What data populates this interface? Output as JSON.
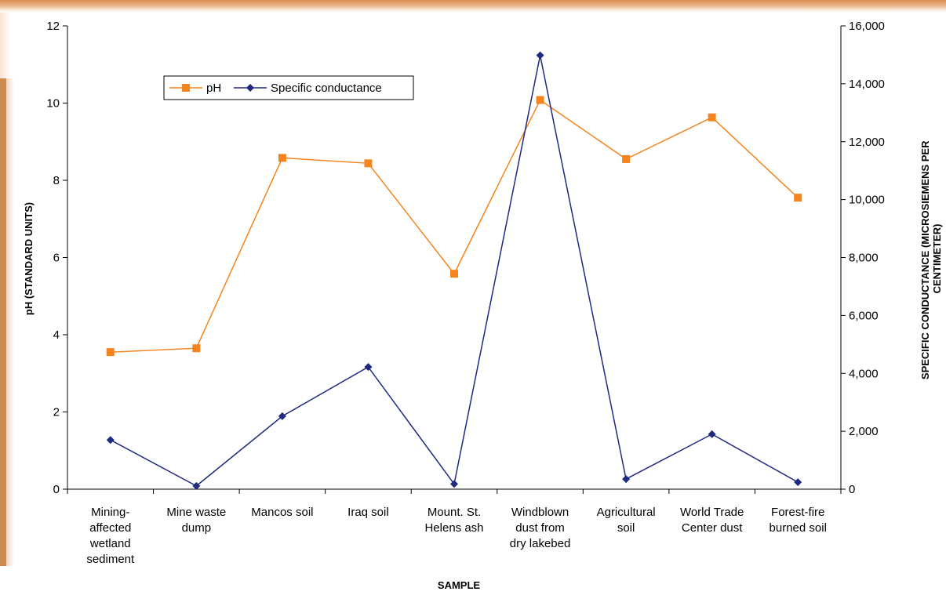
{
  "chart_data": {
    "type": "line",
    "title": "",
    "xlabel": "SAMPLE",
    "ylabel": "pH (STANDARD UNITS)",
    "y2label": [
      "SPECIFIC CONDUCTANCE (MICROSIEMENS PER",
      "CENTIMETER)"
    ],
    "categories": [
      [
        "Mining-",
        "affected",
        "wetland",
        "sediment"
      ],
      [
        "Mine waste",
        "dump"
      ],
      [
        "Mancos soil"
      ],
      [
        "Iraq soil"
      ],
      [
        "Mount. St.",
        "Helens ash"
      ],
      [
        "Windblown",
        "dust from",
        "dry lakebed"
      ],
      [
        "Agricultural",
        "soil"
      ],
      [
        "World Trade",
        "Center dust"
      ],
      [
        "Forest-fire",
        "burned soil"
      ]
    ],
    "ylim": [
      0,
      12
    ],
    "yticks": [
      0,
      2,
      4,
      6,
      8,
      10,
      12
    ],
    "y2lim": [
      0,
      16000
    ],
    "y2ticks": [
      0,
      2000,
      4000,
      6000,
      8000,
      10000,
      12000,
      14000,
      16000
    ],
    "y2ticklabels": [
      "0",
      "2,000",
      "4,000",
      "6,000",
      "8,000",
      "10,000",
      "12,000",
      "14,000",
      "16,000"
    ],
    "grid": false,
    "legend_position": "top-left",
    "series": [
      {
        "name": "pH",
        "axis": "left",
        "color": "#f5841f",
        "marker": "square",
        "values": [
          3.55,
          3.65,
          8.58,
          8.44,
          5.58,
          10.08,
          8.55,
          9.63,
          7.55
        ]
      },
      {
        "name": "Specific conductance",
        "axis": "right",
        "color": "#1f2a80",
        "marker": "diamond",
        "values": [
          1700,
          110,
          2520,
          4220,
          180,
          14980,
          350,
          1900,
          240
        ]
      }
    ]
  }
}
